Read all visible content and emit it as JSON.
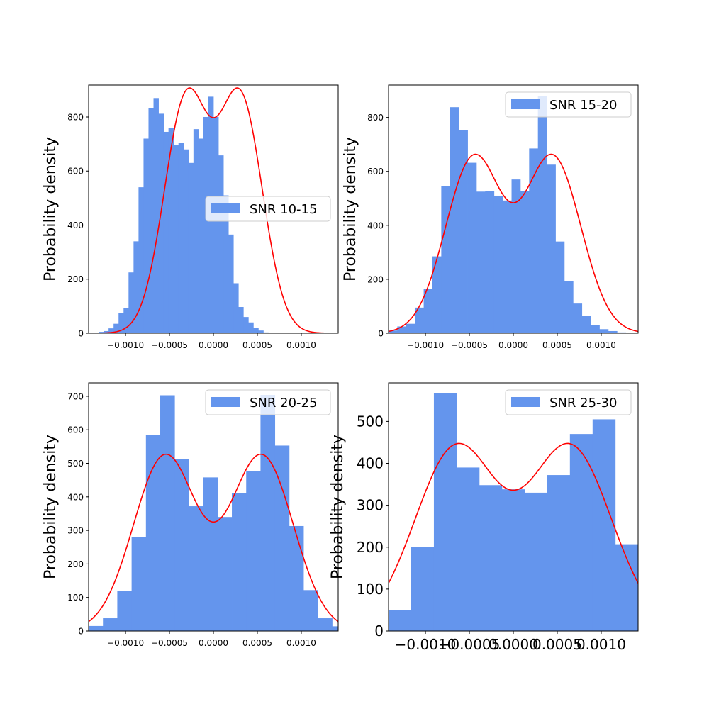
{
  "colors": {
    "bar": "#6495ed",
    "fit": "#ff0000",
    "axis": "#000000",
    "legend_border": "#cccccc"
  },
  "chart_data": [
    {
      "type": "bar",
      "title": "",
      "xlabel": "",
      "ylabel": "Probability density",
      "legend": {
        "label": "SNR 10-15",
        "placement": "center-right"
      },
      "xlim": [
        -0.00142,
        0.00142
      ],
      "ylim": [
        0,
        918
      ],
      "grid": false,
      "xticks": [
        -0.001,
        -0.0005,
        0.0,
        0.0005,
        0.001
      ],
      "xtick_labels": [
        "−0.0010",
        "−0.0005",
        "0.0000",
        "0.0005",
        "0.0010"
      ],
      "yticks": [
        0,
        200,
        400,
        600,
        800
      ],
      "ytick_labels": [
        "0",
        "200",
        "400",
        "600",
        "800"
      ],
      "tick_font": "small",
      "hist": {
        "bin_start": -0.00142,
        "bin_width": 5.68e-05,
        "values": [
          0,
          2,
          5,
          8,
          18,
          35,
          75,
          93,
          225,
          340,
          540,
          720,
          832,
          870,
          812,
          745,
          760,
          695,
          705,
          680,
          630,
          755,
          720,
          800,
          875,
          800,
          658,
          510,
          365,
          185,
          97,
          60,
          40,
          20,
          10,
          3,
          2,
          0,
          0,
          0
        ]
      },
      "fit": {
        "amplitude": 860,
        "centers": [
          -0.00031,
          0.00031
        ],
        "sigma": 0.00025
      }
    },
    {
      "type": "bar",
      "title": "",
      "xlabel": "",
      "ylabel": "Probability density",
      "legend": {
        "label": "SNR 15-20",
        "placement": "top-right"
      },
      "xlim": [
        -0.00142,
        0.00142
      ],
      "ylim": [
        0,
        920
      ],
      "grid": false,
      "xticks": [
        -0.001,
        -0.0005,
        0.0,
        0.0005,
        0.001
      ],
      "xtick_labels": [
        "−0.0010",
        "−0.0005",
        "0.0000",
        "0.0005",
        "0.0010"
      ],
      "yticks": [
        0,
        200,
        400,
        600,
        800
      ],
      "ytick_labels": [
        "0",
        "200",
        "400",
        "600",
        "800"
      ],
      "tick_font": "small",
      "hist": {
        "bin_start": -0.00142,
        "bin_width": 0.0001,
        "values": [
          10,
          25,
          35,
          95,
          165,
          285,
          545,
          838,
          752,
          632,
          525,
          528,
          510,
          492,
          570,
          528,
          685,
          880,
          625,
          340,
          192,
          110,
          65,
          30,
          15,
          8,
          3,
          0,
          0
        ]
      },
      "fit": {
        "amplitude": 650,
        "centers": [
          -0.00045,
          0.00045
        ],
        "sigma": 0.00032
      }
    },
    {
      "type": "bar",
      "title": "",
      "xlabel": "",
      "ylabel": "Probability density",
      "legend": {
        "label": "SNR 20-25",
        "placement": "top-right"
      },
      "xlim": [
        -0.00142,
        0.00142
      ],
      "ylim": [
        0,
        740
      ],
      "grid": false,
      "xticks": [
        -0.001,
        -0.0005,
        0.0,
        0.0005,
        0.001
      ],
      "xtick_labels": [
        "−0.0010",
        "−0.0005",
        "0.0000",
        "0.0005",
        "0.0010"
      ],
      "yticks": [
        0,
        100,
        200,
        300,
        400,
        500,
        600,
        700
      ],
      "ytick_labels": [
        "0",
        "100",
        "200",
        "300",
        "400",
        "500",
        "600",
        "700"
      ],
      "tick_font": "small",
      "hist": {
        "bin_start": -0.00142,
        "bin_width": 0.000163,
        "values": [
          15,
          38,
          120,
          280,
          585,
          703,
          512,
          372,
          458,
          340,
          412,
          476,
          704,
          553,
          313,
          122,
          38,
          14
        ]
      },
      "fit": {
        "amplitude": 522,
        "centers": [
          -0.00055,
          0.00055
        ],
        "sigma": 0.00036
      }
    },
    {
      "type": "bar",
      "title": "",
      "xlabel": "",
      "ylabel": "Probability density",
      "legend": {
        "label": "SNR 25-30",
        "placement": "top-right"
      },
      "xlim": [
        -0.00142,
        0.00142
      ],
      "ylim": [
        0,
        592
      ],
      "grid": false,
      "xticks": [
        -0.001,
        -0.0005,
        0.0,
        0.0005,
        0.001
      ],
      "xtick_labels": [
        "−0.0010",
        "−0.0005",
        "0.0000",
        "0.0005",
        "0.0010"
      ],
      "yticks": [
        0,
        100,
        200,
        300,
        400,
        500
      ],
      "ytick_labels": [
        "0",
        "100",
        "200",
        "300",
        "400",
        "500"
      ],
      "tick_font": "large",
      "hist": {
        "bin_start": -0.00142,
        "bin_width": 0.000258,
        "values": [
          50,
          200,
          568,
          390,
          348,
          338,
          330,
          372,
          470,
          505,
          207,
          50
        ]
      },
      "fit": {
        "amplitude": 437,
        "centers": [
          -0.00065,
          0.00065
        ],
        "sigma": 0.00047
      }
    }
  ]
}
